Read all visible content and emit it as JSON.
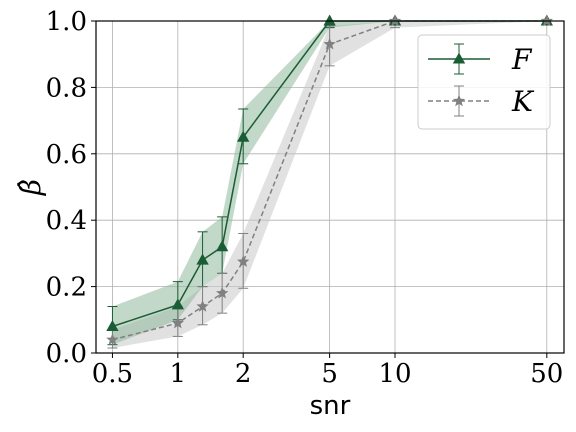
{
  "chart_data": {
    "type": "line",
    "xlabel": "snr",
    "ylabel": "β̂",
    "xscale": "log",
    "xlim": [
      0.42,
      60
    ],
    "ylim": [
      0,
      1
    ],
    "xticks": [
      0.5,
      1,
      2,
      5,
      10,
      50
    ],
    "xtick_labels": [
      "0.5",
      "1",
      "2",
      "5",
      "10",
      "50"
    ],
    "yticks": [
      0.0,
      0.2,
      0.4,
      0.6,
      0.8,
      1.0
    ],
    "ytick_labels": [
      "0.0",
      "0.2",
      "0.4",
      "0.6",
      "0.8",
      "1.0"
    ],
    "grid": true,
    "legend_position": "top-right",
    "x": [
      0.5,
      1,
      1.3,
      1.6,
      2,
      5,
      10,
      50
    ],
    "series": [
      {
        "name": "F",
        "color": "#1a5c34",
        "band_color": "#8fb99d",
        "marker": "triangle",
        "line_style": "solid",
        "values": [
          0.08,
          0.145,
          0.28,
          0.32,
          0.65,
          1.0,
          1.0,
          1.0
        ],
        "err_lower": [
          0.025,
          0.1,
          0.2,
          0.24,
          0.57,
          0.98,
          1.0,
          1.0
        ],
        "err_upper": [
          0.14,
          0.215,
          0.365,
          0.41,
          0.735,
          1.0,
          1.0,
          1.0
        ]
      },
      {
        "name": "K",
        "color": "#808080",
        "band_color": "#c8c8c8",
        "marker": "star",
        "line_style": "dashed",
        "values": [
          0.04,
          0.09,
          0.14,
          0.18,
          0.275,
          0.93,
          1.0,
          1.0
        ],
        "err_lower": [
          0.015,
          0.05,
          0.085,
          0.12,
          0.195,
          0.865,
          0.98,
          1.0
        ],
        "err_upper": [
          0.07,
          0.14,
          0.2,
          0.24,
          0.36,
          0.985,
          1.0,
          1.0
        ]
      }
    ]
  }
}
